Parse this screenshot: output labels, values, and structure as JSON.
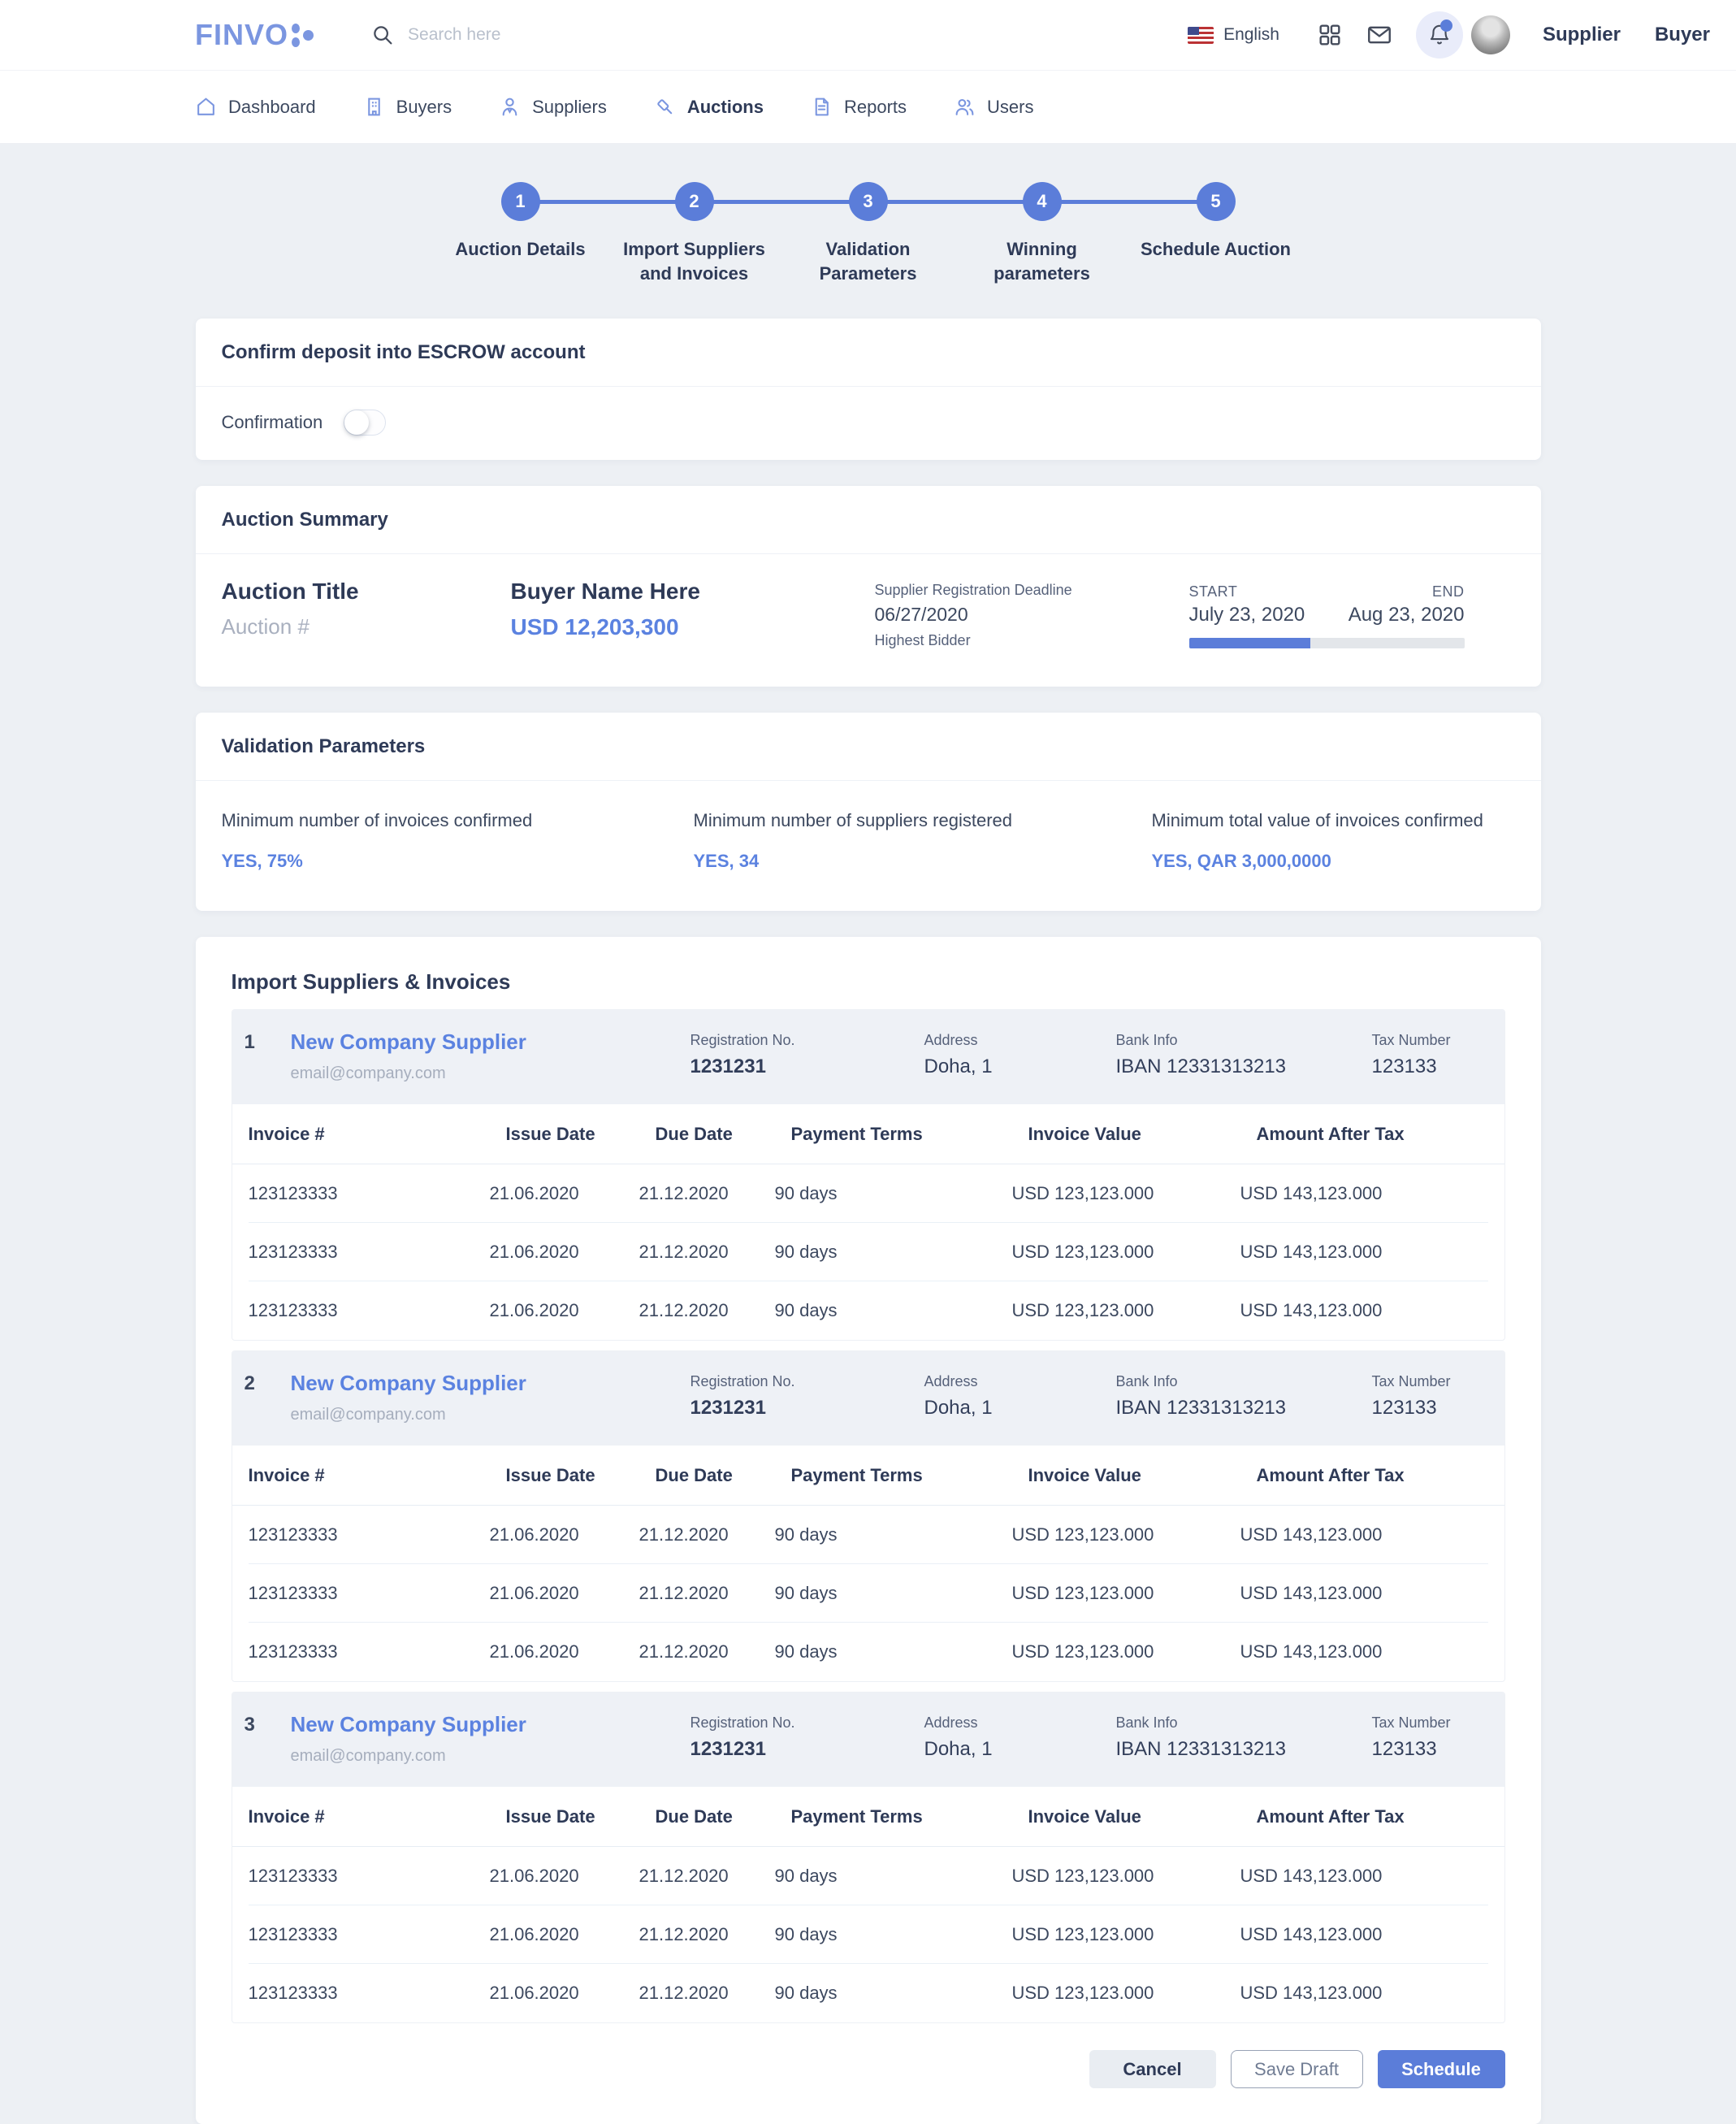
{
  "header": {
    "logo": "FINVO",
    "search_placeholder": "Search here",
    "language": "English",
    "role_supplier": "Supplier",
    "role_buyer": "Buyer",
    "icons": [
      "search-icon",
      "us-flag-icon",
      "grid-icon",
      "mail-icon",
      "bell-icon",
      "avatar"
    ]
  },
  "nav": {
    "items": [
      {
        "label": "Dashboard",
        "active": false
      },
      {
        "label": "Buyers",
        "active": false
      },
      {
        "label": "Suppliers",
        "active": false
      },
      {
        "label": "Auctions",
        "active": true
      },
      {
        "label": "Reports",
        "active": false
      },
      {
        "label": "Users",
        "active": false
      }
    ]
  },
  "stepper": {
    "steps": [
      {
        "number": "1",
        "label": "Auction Details"
      },
      {
        "number": "2",
        "label": "Import Suppliers and Invoices"
      },
      {
        "number": "3",
        "label": "Validation Parameters"
      },
      {
        "number": "4",
        "label": "Winning parameters"
      },
      {
        "number": "5",
        "label": "Schedule Auction"
      }
    ]
  },
  "escrow": {
    "title": "Confirm deposit into ESCROW account",
    "confirmation_label": "Confirmation",
    "toggle_state": "off"
  },
  "summary": {
    "title": "Auction Summary",
    "auction_title": "Auction Title",
    "auction_number": "Auction #",
    "buyer_name": "Buyer Name Here",
    "amount": "USD 12,203,300",
    "deadline_label": "Supplier Registration Deadline",
    "deadline_date": "06/27/2020",
    "highest_bidder_label": "Highest Bidder",
    "start_label": "START",
    "start_date": "July 23, 2020",
    "end_label": "END",
    "end_date": "Aug 23, 2020",
    "progress_percent": 44
  },
  "validation": {
    "title": "Validation Parameters",
    "items": [
      {
        "label": "Minimum number of invoices confirmed",
        "value": "YES, 75%"
      },
      {
        "label": "Minimum number of suppliers registered",
        "value": "YES, 34"
      },
      {
        "label": "Minimum total value of invoices confirmed",
        "value": "YES, QAR 3,000,0000"
      }
    ]
  },
  "import_section": {
    "title": "Import Suppliers & Invoices",
    "table_headers": [
      "Invoice #",
      "Issue Date",
      "Due Date",
      "Payment Terms",
      "Invoice Value",
      "Amount After Tax"
    ],
    "suppliers": [
      {
        "index": "1",
        "name": "New Company Supplier",
        "email": "email@company.com",
        "registration_label": "Registration No.",
        "registration_value": "1231231",
        "address_label": "Address",
        "address_value": "Doha, 1",
        "bank_label": "Bank Info",
        "bank_value": "IBAN 12331313213",
        "tax_label": "Tax Number",
        "tax_value": "123133",
        "rows": [
          [
            "123123333",
            "21.06.2020",
            "21.12.2020",
            "90 days",
            "USD 123,123.000",
            "USD 143,123.000"
          ],
          [
            "123123333",
            "21.06.2020",
            "21.12.2020",
            "90 days",
            "USD 123,123.000",
            "USD 143,123.000"
          ],
          [
            "123123333",
            "21.06.2020",
            "21.12.2020",
            "90 days",
            "USD 123,123.000",
            "USD 143,123.000"
          ]
        ]
      },
      {
        "index": "2",
        "name": "New Company Supplier",
        "email": "email@company.com",
        "registration_label": "Registration No.",
        "registration_value": "1231231",
        "address_label": "Address",
        "address_value": "Doha, 1",
        "bank_label": "Bank Info",
        "bank_value": "IBAN 12331313213",
        "tax_label": "Tax Number",
        "tax_value": "123133",
        "rows": [
          [
            "123123333",
            "21.06.2020",
            "21.12.2020",
            "90 days",
            "USD 123,123.000",
            "USD 143,123.000"
          ],
          [
            "123123333",
            "21.06.2020",
            "21.12.2020",
            "90 days",
            "USD 123,123.000",
            "USD 143,123.000"
          ],
          [
            "123123333",
            "21.06.2020",
            "21.12.2020",
            "90 days",
            "USD 123,123.000",
            "USD 143,123.000"
          ]
        ]
      },
      {
        "index": "3",
        "name": "New Company Supplier",
        "email": "email@company.com",
        "registration_label": "Registration No.",
        "registration_value": "1231231",
        "address_label": "Address",
        "address_value": "Doha, 1",
        "bank_label": "Bank Info",
        "bank_value": "IBAN 12331313213",
        "tax_label": "Tax Number",
        "tax_value": "123133",
        "rows": [
          [
            "123123333",
            "21.06.2020",
            "21.12.2020",
            "90 days",
            "USD 123,123.000",
            "USD 143,123.000"
          ],
          [
            "123123333",
            "21.06.2020",
            "21.12.2020",
            "90 days",
            "USD 123,123.000",
            "USD 143,123.000"
          ],
          [
            "123123333",
            "21.06.2020",
            "21.12.2020",
            "90 days",
            "USD 123,123.000",
            "USD 143,123.000"
          ]
        ]
      }
    ]
  },
  "footer_buttons": {
    "cancel": "Cancel",
    "save_draft": "Save Draft",
    "schedule": "Schedule"
  },
  "colors": {
    "accent_blue": "#5b7dd9",
    "link_blue": "#5b82e0",
    "logo_blue": "#7b96e0",
    "navy_text": "#2e3a57",
    "page_background": "#edf0f4"
  }
}
